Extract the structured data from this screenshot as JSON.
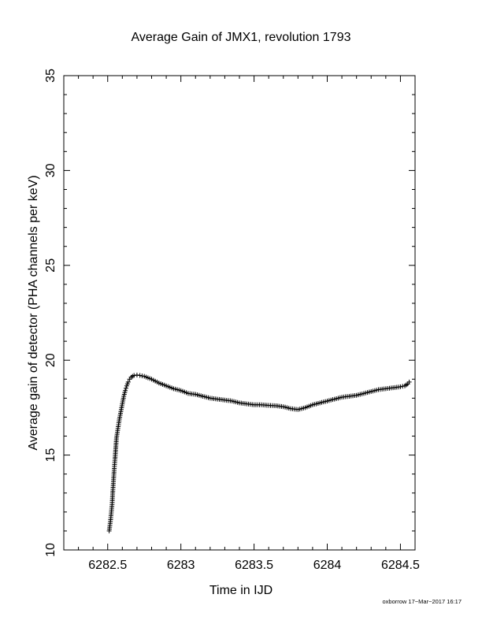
{
  "chart_data": {
    "type": "scatter",
    "title": "Average Gain of JMX1, revolution 1793",
    "xlabel": "Time in IJD",
    "ylabel": "Average gain of detector (PHA channels per keV)",
    "xlim": [
      6282.2,
      6284.6
    ],
    "ylim": [
      10,
      35
    ],
    "xticks": [
      6282.5,
      6283,
      6283.5,
      6284,
      6284.5
    ],
    "xtick_labels": [
      "6282.5",
      "6283",
      "6283.5",
      "6284",
      "6284.5"
    ],
    "yticks": [
      10,
      15,
      20,
      25,
      30,
      35
    ],
    "ytick_labels": [
      "10",
      "15",
      "20",
      "25",
      "30",
      "35"
    ],
    "marker": "plus",
    "grid": false,
    "color": "#000000",
    "series": [
      {
        "values": [
          [
            6282.51,
            11.0
          ],
          [
            6282.52,
            11.6
          ],
          [
            6282.53,
            12.4
          ],
          [
            6282.535,
            13.1
          ],
          [
            6282.54,
            13.7
          ],
          [
            6282.545,
            14.3
          ],
          [
            6282.55,
            14.8
          ],
          [
            6282.56,
            15.9
          ],
          [
            6282.57,
            16.4
          ],
          [
            6282.58,
            16.9
          ],
          [
            6282.59,
            17.3
          ],
          [
            6282.6,
            17.7
          ],
          [
            6282.61,
            18.1
          ],
          [
            6282.62,
            18.4
          ],
          [
            6282.63,
            18.65
          ],
          [
            6282.64,
            18.85
          ],
          [
            6282.65,
            19.0
          ],
          [
            6282.66,
            19.1
          ],
          [
            6282.67,
            19.15
          ],
          [
            6282.68,
            19.2
          ],
          [
            6282.7,
            19.22
          ],
          [
            6282.72,
            19.2
          ],
          [
            6282.75,
            19.15
          ],
          [
            6282.8,
            19.0
          ],
          [
            6282.85,
            18.8
          ],
          [
            6282.9,
            18.65
          ],
          [
            6282.95,
            18.5
          ],
          [
            6283.0,
            18.4
          ],
          [
            6283.05,
            18.25
          ],
          [
            6283.1,
            18.2
          ],
          [
            6283.15,
            18.1
          ],
          [
            6283.2,
            18.0
          ],
          [
            6283.25,
            17.95
          ],
          [
            6283.3,
            17.9
          ],
          [
            6283.35,
            17.85
          ],
          [
            6283.4,
            17.75
          ],
          [
            6283.45,
            17.7
          ],
          [
            6283.5,
            17.65
          ],
          [
            6283.55,
            17.65
          ],
          [
            6283.6,
            17.62
          ],
          [
            6283.65,
            17.6
          ],
          [
            6283.7,
            17.55
          ],
          [
            6283.75,
            17.45
          ],
          [
            6283.8,
            17.4
          ],
          [
            6283.85,
            17.5
          ],
          [
            6283.9,
            17.65
          ],
          [
            6283.95,
            17.75
          ],
          [
            6284.0,
            17.85
          ],
          [
            6284.05,
            17.95
          ],
          [
            6284.1,
            18.05
          ],
          [
            6284.15,
            18.1
          ],
          [
            6284.2,
            18.15
          ],
          [
            6284.25,
            18.25
          ],
          [
            6284.3,
            18.35
          ],
          [
            6284.35,
            18.45
          ],
          [
            6284.4,
            18.5
          ],
          [
            6284.45,
            18.55
          ],
          [
            6284.5,
            18.6
          ],
          [
            6284.53,
            18.65
          ],
          [
            6284.55,
            18.75
          ],
          [
            6284.56,
            18.85
          ]
        ]
      }
    ]
  },
  "footer": {
    "text": "oxborrow 17−Mar−2017 16:17"
  }
}
